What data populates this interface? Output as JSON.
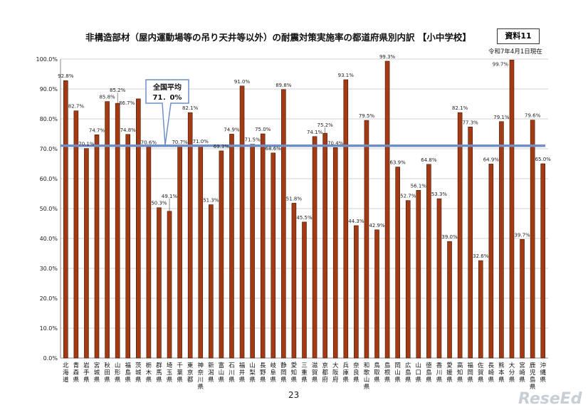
{
  "header": {
    "title": "非構造部材（屋内運動場等の吊り天井等以外）の耐震対策実施率の都道府県別内訳 【小中学校】",
    "badge": "資料11",
    "as_of": "令和7年4月1日現在"
  },
  "footer": {
    "page_number": "23",
    "watermark": "ReseEd"
  },
  "chart_data": {
    "type": "bar",
    "title": "非構造部材（屋内運動場等の吊り天井等以外）の耐震対策実施率の都道府県別内訳 【小中学校】",
    "categories": [
      "北海道",
      "青森県",
      "岩手県",
      "宮城県",
      "秋田県",
      "山形県",
      "福島県",
      "茨城県",
      "栃木県",
      "群馬県",
      "埼玉県",
      "千葉県",
      "東京都",
      "神奈川県",
      "新潟県",
      "富山県",
      "石川県",
      "福井県",
      "山梨県",
      "長野県",
      "岐阜県",
      "静岡県",
      "愛知県",
      "三重県",
      "滋賀県",
      "京都府",
      "大阪府",
      "兵庫県",
      "奈良県",
      "和歌山県",
      "鳥取県",
      "島根県",
      "岡山県",
      "広島県",
      "山口県",
      "徳島県",
      "香川県",
      "愛媛県",
      "高知県",
      "福岡県",
      "佐賀県",
      "長崎県",
      "熊本県",
      "大分県",
      "宮崎県",
      "鹿児島県",
      "沖縄県"
    ],
    "values": [
      92.8,
      82.7,
      70.1,
      74.7,
      85.8,
      85.2,
      74.8,
      86.7,
      70.6,
      50.3,
      49.1,
      70.7,
      82.1,
      71.0,
      51.3,
      69.3,
      74.9,
      91.0,
      71.5,
      75.0,
      68.6,
      89.8,
      51.8,
      45.5,
      74.1,
      75.2,
      70.4,
      93.1,
      44.3,
      79.5,
      42.9,
      99.3,
      63.9,
      52.7,
      56.1,
      64.8,
      53.3,
      39.0,
      82.1,
      77.3,
      32.6,
      64.9,
      79.1,
      99.7,
      39.7,
      79.6,
      65.0
    ],
    "value_unit": "%",
    "ylim": [
      0,
      100
    ],
    "yticks": [
      "0.0%",
      "10.0%",
      "20.0%",
      "30.0%",
      "40.0%",
      "50.0%",
      "60.0%",
      "70.0%",
      "80.0%",
      "90.0%",
      "100.0%"
    ],
    "grid": true,
    "average": {
      "label": "全国平均",
      "value_text": "71．0%",
      "value": 71.0
    },
    "colors": {
      "bar": "#a33a14",
      "bar_edge": "#3a1a0a",
      "average_line": "#6f8fc9",
      "grid": "#d0d0d0"
    }
  }
}
